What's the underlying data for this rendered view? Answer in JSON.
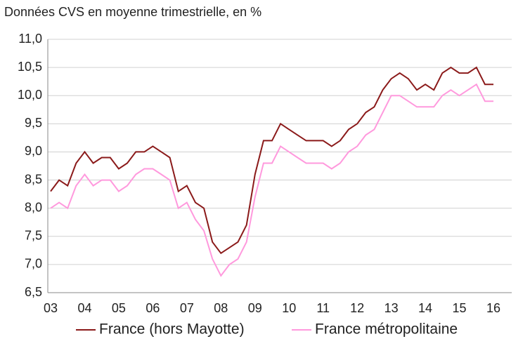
{
  "chart_data": {
    "type": "line",
    "title": "Données CVS en moyenne trimestrielle, en %",
    "categories": [
      "03",
      null,
      null,
      null,
      "04",
      null,
      null,
      null,
      "05",
      null,
      null,
      null,
      "06",
      null,
      null,
      null,
      "07",
      null,
      null,
      null,
      "08",
      null,
      null,
      null,
      "09",
      null,
      null,
      null,
      "10",
      null,
      null,
      null,
      "11",
      null,
      null,
      null,
      "12",
      null,
      null,
      null,
      "13",
      null,
      null,
      null,
      "14",
      null,
      null,
      null,
      "15",
      null,
      null,
      null,
      "16"
    ],
    "series": [
      {
        "name": "France (hors Mayotte)",
        "color": "#8b1a1a",
        "values": [
          8.3,
          8.5,
          8.4,
          8.8,
          9.0,
          8.8,
          8.9,
          8.9,
          8.7,
          8.8,
          9.0,
          9.0,
          9.1,
          9.0,
          8.9,
          8.3,
          8.4,
          8.1,
          8.0,
          7.4,
          7.2,
          7.3,
          7.4,
          7.7,
          8.6,
          9.2,
          9.2,
          9.5,
          9.4,
          9.3,
          9.2,
          9.2,
          9.2,
          9.1,
          9.2,
          9.4,
          9.5,
          9.7,
          9.8,
          10.1,
          10.3,
          10.4,
          10.3,
          10.1,
          10.2,
          10.1,
          10.4,
          10.5,
          10.4,
          10.4,
          10.5,
          10.2,
          10.2
        ]
      },
      {
        "name": "France métropolitaine",
        "color": "#ff99dd",
        "values": [
          8.0,
          8.1,
          8.0,
          8.4,
          8.6,
          8.4,
          8.5,
          8.5,
          8.3,
          8.4,
          8.6,
          8.7,
          8.7,
          8.6,
          8.5,
          8.0,
          8.1,
          7.8,
          7.6,
          7.1,
          6.8,
          7.0,
          7.1,
          7.4,
          8.2,
          8.8,
          8.8,
          9.1,
          9.0,
          8.9,
          8.8,
          8.8,
          8.8,
          8.7,
          8.8,
          9.0,
          9.1,
          9.3,
          9.4,
          9.7,
          10.0,
          10.0,
          9.9,
          9.8,
          9.8,
          9.8,
          10.0,
          10.1,
          10.0,
          10.1,
          10.2,
          9.9,
          9.9
        ]
      }
    ],
    "ylim": [
      6.5,
      11.0
    ],
    "yticks": [
      {
        "value": 6.5,
        "label": "6,5"
      },
      {
        "value": 7.0,
        "label": "7,0"
      },
      {
        "value": 7.5,
        "label": "7,5"
      },
      {
        "value": 8.0,
        "label": "8,0"
      },
      {
        "value": 8.5,
        "label": "8,5"
      },
      {
        "value": 9.0,
        "label": "9,0"
      },
      {
        "value": 9.5,
        "label": "9,5"
      },
      {
        "value": 10.0,
        "label": "10,0"
      },
      {
        "value": 10.5,
        "label": "10,5"
      },
      {
        "value": 11.0,
        "label": "11,0"
      }
    ],
    "grid": true,
    "legend": "bottom"
  }
}
